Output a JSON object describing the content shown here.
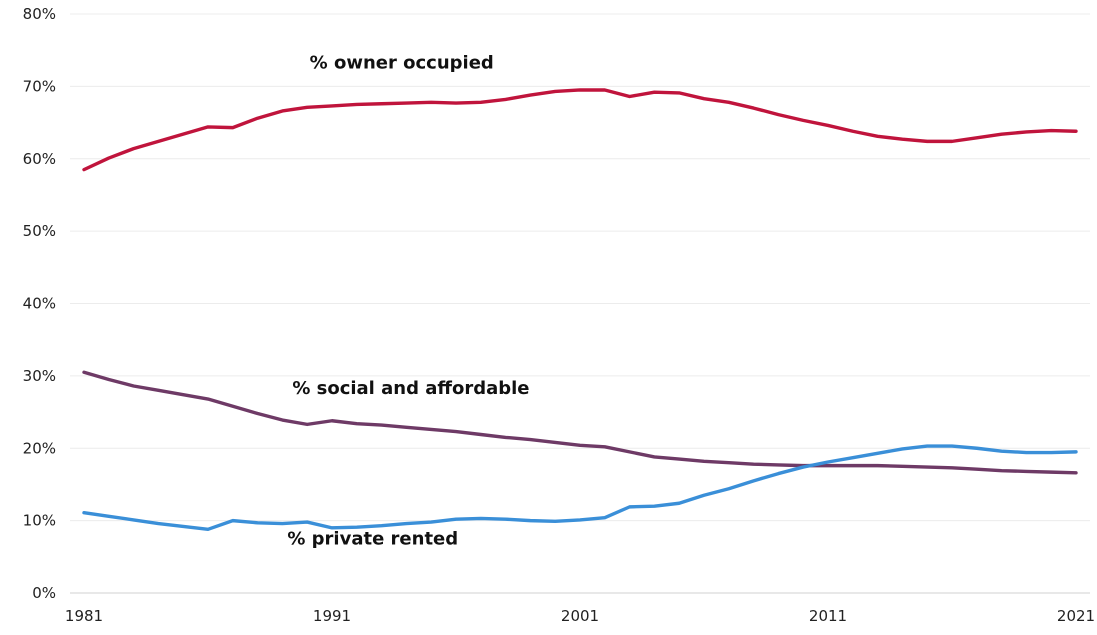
{
  "chart_data": {
    "type": "line",
    "title": "",
    "xlabel": "",
    "ylabel": "",
    "xlim": [
      1981,
      2021
    ],
    "ylim": [
      0,
      80
    ],
    "grid": true,
    "legend": "none (series labelled directly on chart)",
    "x_ticks": [
      {
        "value": 1981,
        "label": "1981"
      },
      {
        "value": 1991,
        "label": "1991"
      },
      {
        "value": 2001,
        "label": "2001"
      },
      {
        "value": 2011,
        "label": "2011"
      },
      {
        "value": 2021,
        "label": "2021"
      }
    ],
    "y_ticks": [
      {
        "value": 0,
        "label": "0%"
      },
      {
        "value": 10,
        "label": "10%"
      },
      {
        "value": 20,
        "label": "20%"
      },
      {
        "value": 30,
        "label": "30%"
      },
      {
        "value": 40,
        "label": "40%"
      },
      {
        "value": 50,
        "label": "50%"
      },
      {
        "value": 60,
        "label": "60%"
      },
      {
        "value": 70,
        "label": "70%"
      },
      {
        "value": 80,
        "label": "80%"
      }
    ],
    "x": [
      1981,
      1982,
      1983,
      1984,
      1985,
      1986,
      1987,
      1988,
      1989,
      1990,
      1991,
      1992,
      1993,
      1994,
      1995,
      1996,
      1997,
      1998,
      1999,
      2000,
      2001,
      2002,
      2003,
      2004,
      2005,
      2006,
      2007,
      2008,
      2009,
      2010,
      2011,
      2012,
      2013,
      2014,
      2015,
      2016,
      2017,
      2018,
      2019,
      2020,
      2021
    ],
    "series": [
      {
        "name": "% owner occupied",
        "color": "#c0143c",
        "values": [
          58.5,
          60.1,
          61.4,
          62.4,
          63.4,
          64.4,
          64.3,
          65.6,
          66.6,
          67.1,
          67.3,
          67.5,
          67.6,
          67.7,
          67.8,
          67.7,
          67.8,
          68.2,
          68.8,
          69.3,
          69.5,
          69.5,
          68.6,
          69.2,
          69.1,
          68.3,
          67.8,
          67.0,
          66.1,
          65.3,
          64.6,
          63.8,
          63.1,
          62.7,
          62.4,
          62.4,
          62.9,
          63.4,
          63.7,
          63.9,
          63.8
        ],
        "label_anchor": {
          "x": 1990.1,
          "y": 72.5
        }
      },
      {
        "name": "% social and affordable",
        "color": "#6e3a66",
        "values": [
          30.5,
          29.5,
          28.6,
          28.0,
          27.4,
          26.8,
          25.8,
          24.8,
          23.9,
          23.3,
          23.8,
          23.4,
          23.2,
          22.9,
          22.6,
          22.3,
          21.9,
          21.5,
          21.2,
          20.8,
          20.4,
          20.2,
          19.5,
          18.8,
          18.5,
          18.2,
          18.0,
          17.8,
          17.7,
          17.6,
          17.6,
          17.6,
          17.6,
          17.5,
          17.4,
          17.3,
          17.1,
          16.9,
          16.8,
          16.7,
          16.6
        ],
        "label_anchor": {
          "x": 1989.4,
          "y": 27.5
        }
      },
      {
        "name": "% private rented",
        "color": "#3a8fd8",
        "values": [
          11.1,
          10.6,
          10.1,
          9.6,
          9.2,
          8.8,
          10.0,
          9.7,
          9.6,
          9.8,
          9.0,
          9.1,
          9.3,
          9.6,
          9.8,
          10.2,
          10.3,
          10.2,
          10.0,
          9.9,
          10.1,
          10.4,
          11.9,
          12.0,
          12.4,
          13.5,
          14.4,
          15.5,
          16.5,
          17.4,
          18.1,
          18.7,
          19.3,
          19.9,
          20.3,
          20.3,
          20.0,
          19.6,
          19.4,
          19.4,
          19.5
        ],
        "label_anchor": {
          "x": 1989.2,
          "y": 6.7
        }
      }
    ]
  }
}
